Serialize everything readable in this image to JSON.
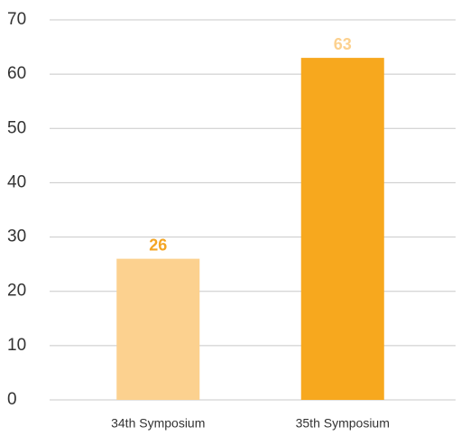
{
  "chart_data": {
    "type": "bar",
    "categories": [
      "34th Symposium",
      "35th Symposium"
    ],
    "values": [
      26,
      63
    ],
    "colors": [
      "#fcd18f",
      "#f7a81e"
    ],
    "label_colors": [
      "#f4a523",
      "#fcd18f"
    ],
    "ylim": [
      0,
      70
    ],
    "yticks": [
      0,
      10,
      20,
      30,
      40,
      50,
      60,
      70
    ],
    "grid": true
  }
}
